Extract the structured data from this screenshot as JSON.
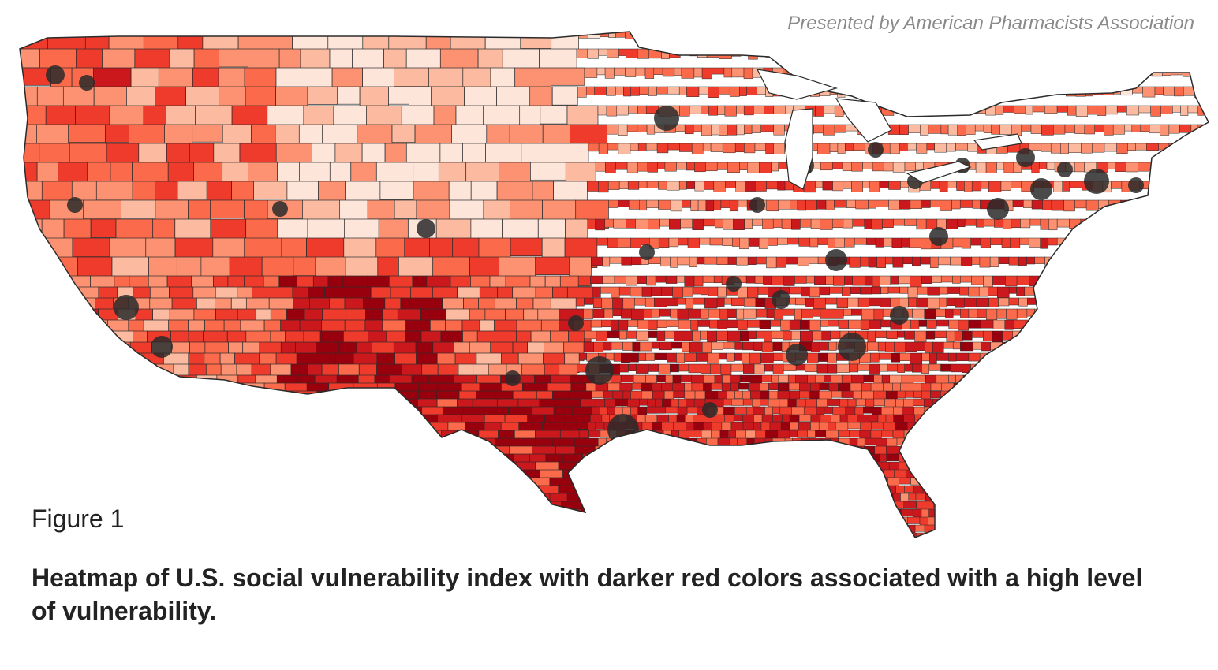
{
  "attribution": "Presented by American Pharmacists Association",
  "figure_label": "Figure 1",
  "caption": "Heatmap of U.S. social vulnerability index with darker red colors associated with a high level of vulnerability.",
  "map": {
    "region": "Contiguous United States",
    "measure": "social vulnerability index",
    "color_scale": [
      "#fee5d9",
      "#fcbba1",
      "#fc9272",
      "#fb6a4a",
      "#ef3b2c",
      "#cb181d",
      "#99000d"
    ],
    "border_color": "#2b2b2b",
    "water_color": "#ffffff"
  }
}
